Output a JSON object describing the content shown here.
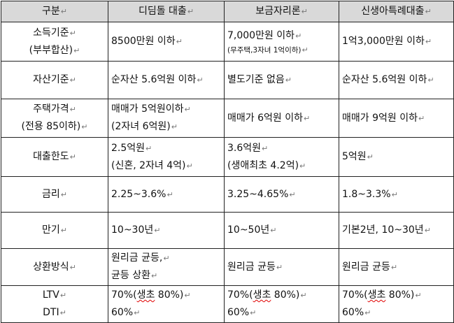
{
  "header": {
    "label": "구분",
    "col1": "디딤돌 대출",
    "col2": "보금자리론",
    "col3": "신생아특례대출"
  },
  "return_mark": "↵",
  "rows": {
    "income": {
      "label1": "소득기준",
      "label2": "(부부합산)",
      "c1": "8500만원 이하",
      "c2_line1": "7,000만원 이하",
      "c2_line2": "(무주택,3자녀 1억이하)",
      "c3": "1억3,000만원 이하"
    },
    "assets": {
      "label": "자산기준",
      "c1": "순자산 5.6억원 이하",
      "c2": "별도기준 없음",
      "c3": "순자산 5.6억원 이하"
    },
    "price": {
      "label1": "주택가격",
      "label2": "(전용 85이하)",
      "c1_line1": "매매가 5억원이하",
      "c1_line2": "(2자녀 6억원)",
      "c2": "매매가 6억원 이하",
      "c3": "매매가 9억원 이하"
    },
    "limit": {
      "label": "대출한도",
      "c1_line1": "2.5억원",
      "c1_line2": "(신혼, 2자녀 4억)",
      "c2_line1": "3.6억원",
      "c2_line2": "(생애최초 4.2억)",
      "c3": "5억원"
    },
    "rate": {
      "label": "금리",
      "c1": "2.25~3.6%",
      "c2": "3.25~4.65%",
      "c3": "1.8~3.3%"
    },
    "term": {
      "label": "만기",
      "c1": "10~30년",
      "c2": "10~50년",
      "c3": "기본2년, 10~30년"
    },
    "repay": {
      "label": "상환방식",
      "c1_line1": "원리금 균등,",
      "c1_line2": "균등 상환",
      "c2": "원리금 균등",
      "c3": "원리금 균등"
    },
    "ltv": {
      "label1": "LTV",
      "label2": "DTI",
      "ltv_value": "70%(",
      "ltv_first": "생초",
      "ltv_rest": " 80%)",
      "dti_value": "60%"
    }
  }
}
